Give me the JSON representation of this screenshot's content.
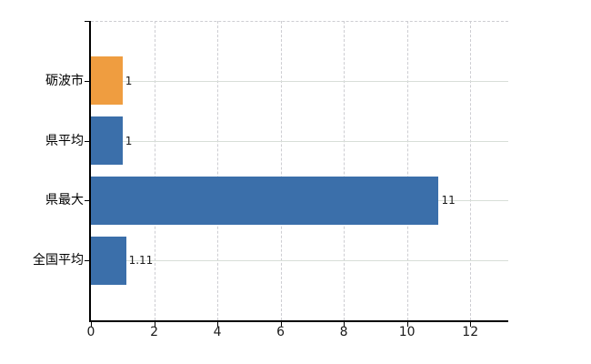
{
  "chart_data": {
    "type": "bar",
    "orientation": "horizontal",
    "title": "",
    "xlabel": "",
    "ylabel": "",
    "categories": [
      "砺波市",
      "県平均",
      "県最大",
      "全国平均"
    ],
    "values": [
      1,
      1,
      11,
      1.11
    ],
    "value_labels": [
      "1",
      "1",
      "11",
      "1.11"
    ],
    "bar_colors": [
      "#ef9d40",
      "#3b6faa",
      "#3b6faa",
      "#3b6faa"
    ],
    "x_ticks": [
      0,
      2,
      4,
      6,
      8,
      10,
      12
    ],
    "xlim": [
      0,
      13.2
    ],
    "legend": "none",
    "grid": "horizontal-solid-at-category-centers, vertical-dashed-at-ticks, dashed-top-border"
  },
  "colors": {
    "background": "#ffffff",
    "bar_orange": "#ef9d40",
    "bar_blue": "#3b6faa",
    "axis": "#000000",
    "grid_horizontal": "#d8ded8",
    "grid_vertical_dashed": "#cdcdd2",
    "value_label_text": "#1a1a1a",
    "tick_label_text": "#1a1a1a",
    "category_label_text": "#000000"
  }
}
